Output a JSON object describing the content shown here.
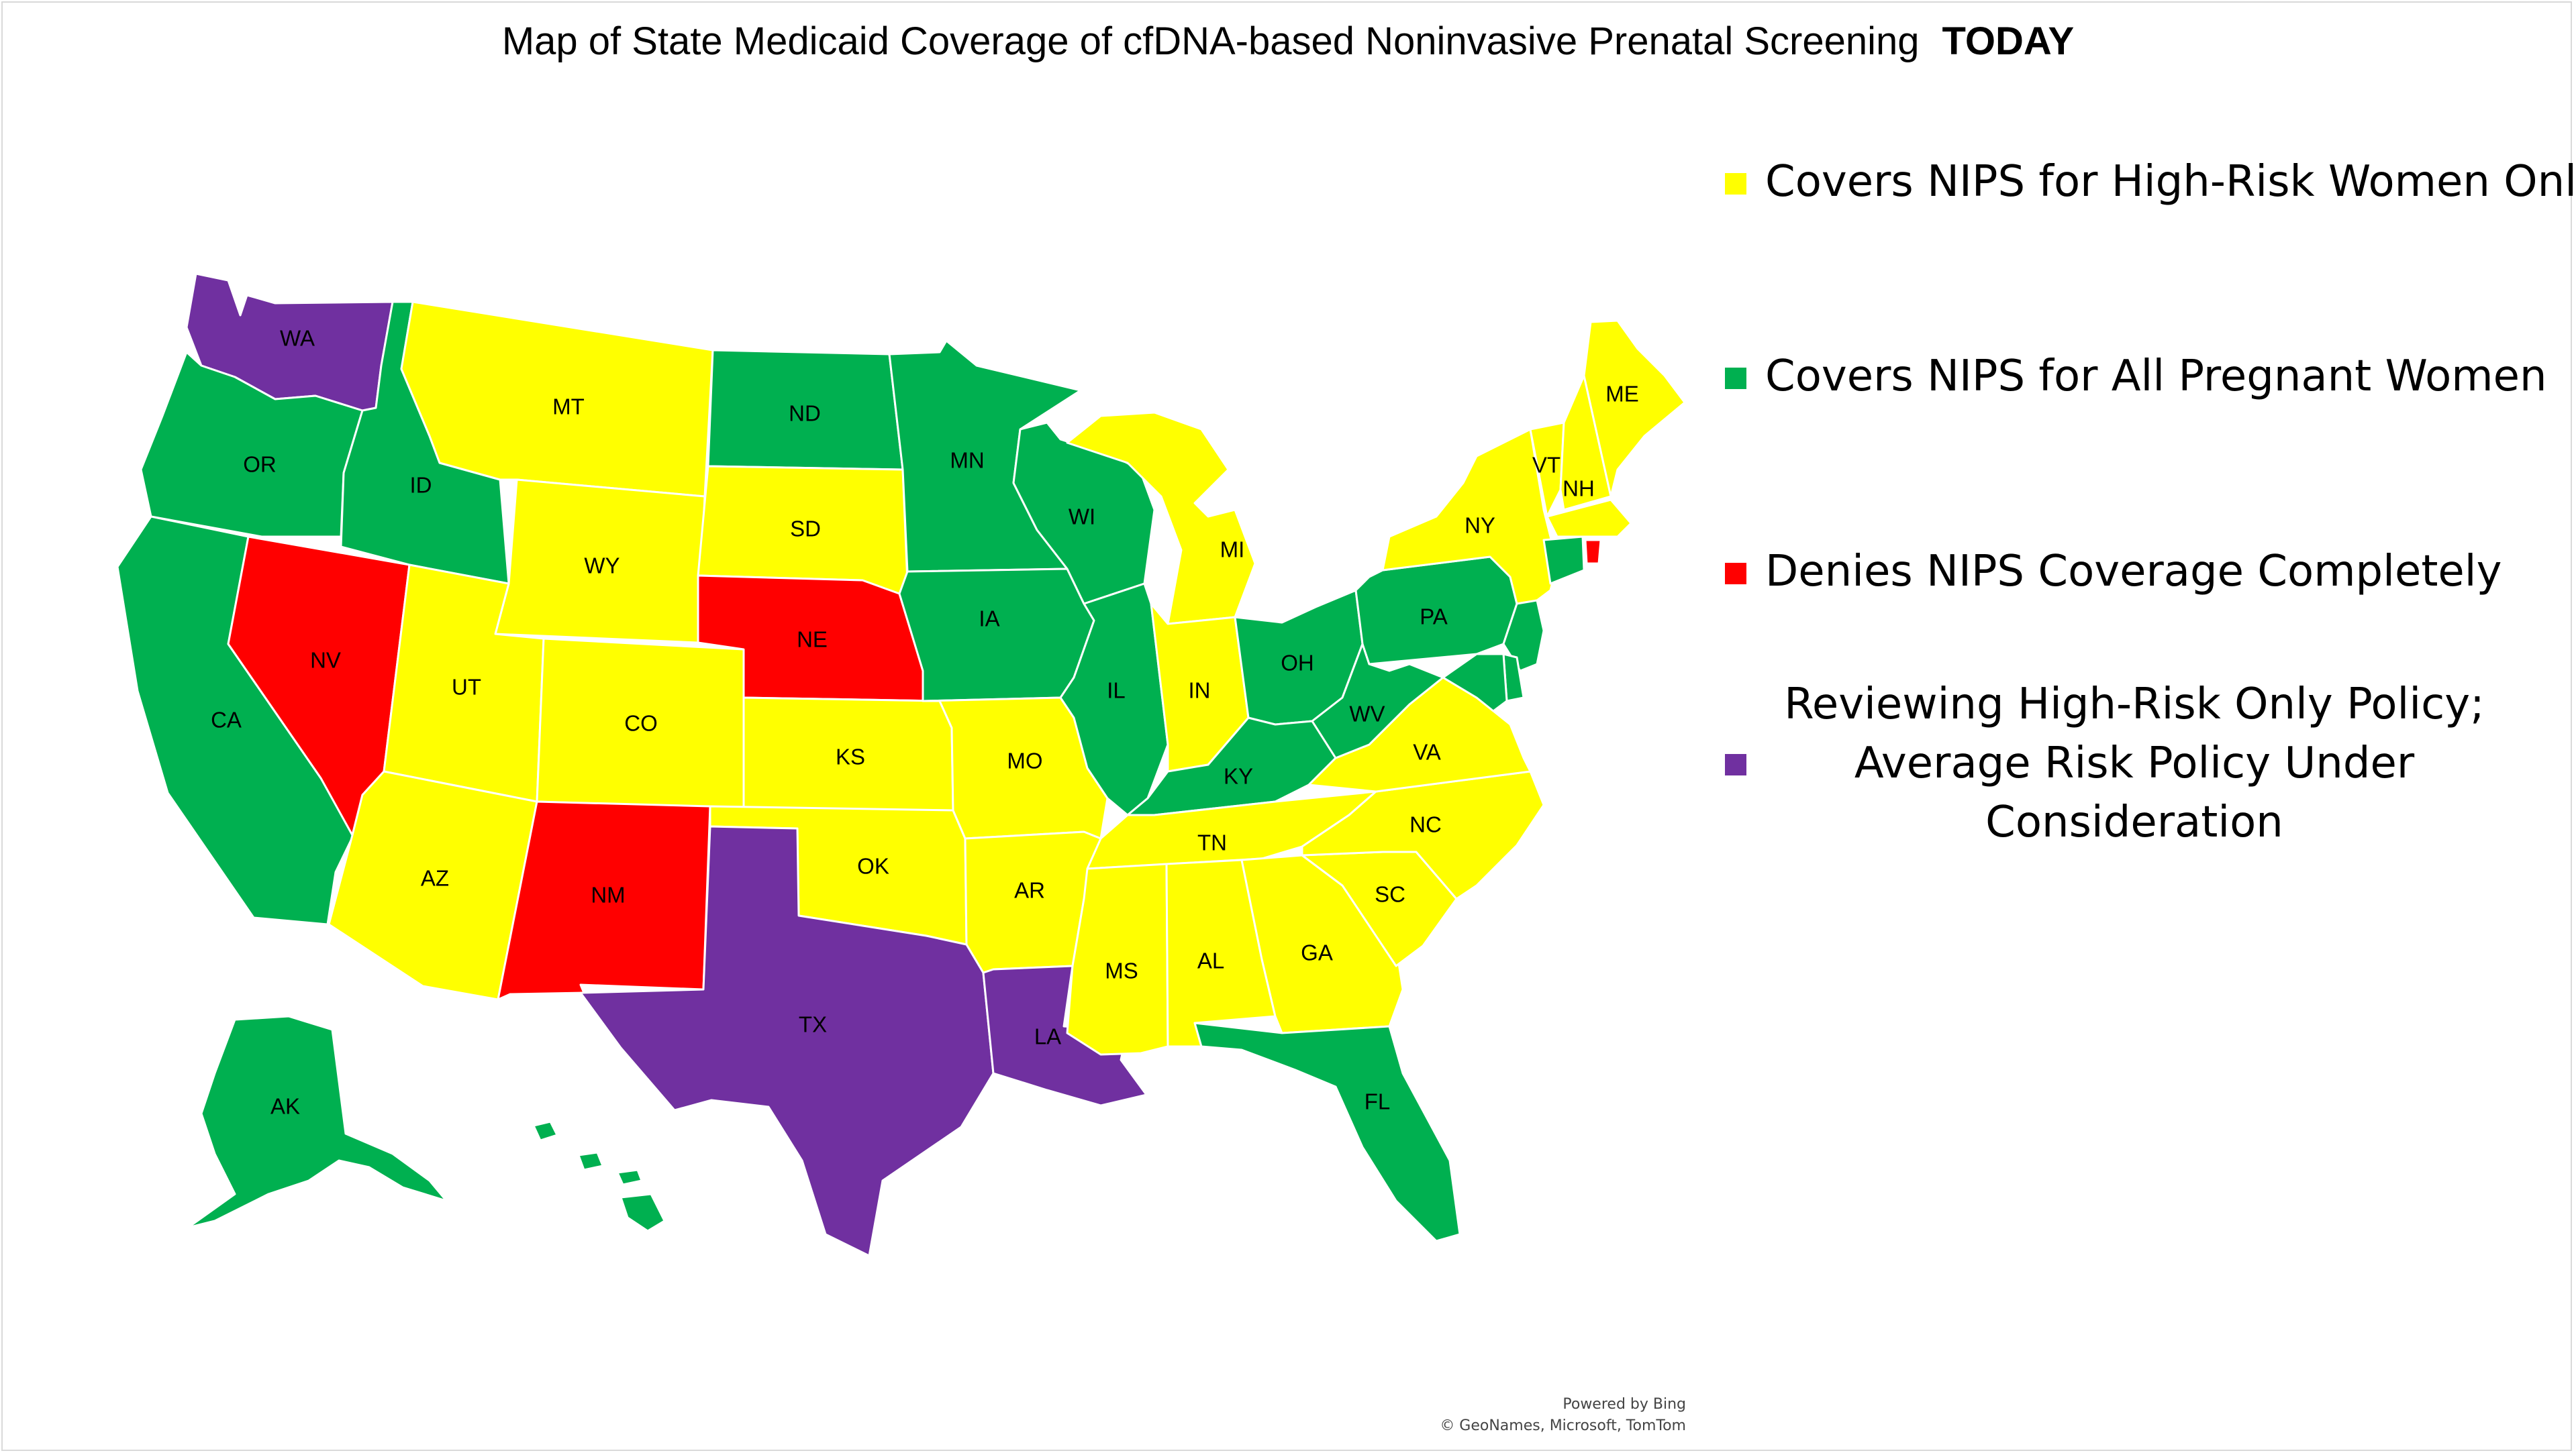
{
  "title": {
    "text": "Map of State Medicaid Coverage of cfDNA-based Noninvasive Prenatal Screening",
    "emphasis": "TODAY"
  },
  "colors": {
    "high_risk_only": "#ffff00",
    "all_pregnant": "#00b050",
    "denies": "#ff0000",
    "reviewing": "#7030a0"
  },
  "legend": [
    {
      "key": "high_risk_only",
      "label": "Covers NIPS for High-Risk Women Only"
    },
    {
      "key": "all_pregnant",
      "label": "Covers NIPS for All Pregnant Women"
    },
    {
      "key": "denies",
      "label": "Denies NIPS Coverage Completely"
    },
    {
      "key": "reviewing",
      "lines": [
        "Reviewing High-Risk Only Policy;",
        "Average Risk Policy Under",
        "Consideration"
      ]
    }
  ],
  "states": {
    "WA": "reviewing",
    "OR": "all_pregnant",
    "CA": "all_pregnant",
    "ID": "all_pregnant",
    "NV": "denies",
    "MT": "high_risk_only",
    "WY": "high_risk_only",
    "UT": "high_risk_only",
    "AZ": "high_risk_only",
    "CO": "high_risk_only",
    "NM": "denies",
    "ND": "all_pregnant",
    "SD": "high_risk_only",
    "NE": "denies",
    "KS": "high_risk_only",
    "OK": "high_risk_only",
    "TX": "reviewing",
    "MN": "all_pregnant",
    "IA": "all_pregnant",
    "MO": "high_risk_only",
    "AR": "high_risk_only",
    "LA": "reviewing",
    "WI": "all_pregnant",
    "IL": "all_pregnant",
    "MI": "high_risk_only",
    "IN": "high_risk_only",
    "OH": "all_pregnant",
    "KY": "all_pregnant",
    "TN": "high_risk_only",
    "MS": "high_risk_only",
    "AL": "high_risk_only",
    "GA": "high_risk_only",
    "FL": "all_pregnant",
    "SC": "high_risk_only",
    "NC": "high_risk_only",
    "VA": "high_risk_only",
    "WV": "all_pregnant",
    "PA": "all_pregnant",
    "NY": "high_risk_only",
    "VT": "high_risk_only",
    "NH": "high_risk_only",
    "ME": "high_risk_only",
    "MA": "high_risk_only",
    "CT": "all_pregnant",
    "RI": "denies",
    "NJ": "all_pregnant",
    "DE": "all_pregnant",
    "MD": "all_pregnant",
    "AK": "all_pregnant",
    "HI": "all_pregnant"
  },
  "state_labels": [
    "WA",
    "OR",
    "CA",
    "ID",
    "NV",
    "MT",
    "WY",
    "UT",
    "AZ",
    "CO",
    "NM",
    "ND",
    "SD",
    "NE",
    "KS",
    "OK",
    "TX",
    "MN",
    "IA",
    "MO",
    "AR",
    "LA",
    "WI",
    "IL",
    "MI",
    "IN",
    "OH",
    "KY",
    "TN",
    "MS",
    "AL",
    "GA",
    "FL",
    "SC",
    "NC",
    "VA",
    "WV",
    "PA",
    "NY",
    "VT",
    "NH",
    "ME",
    "AK"
  ],
  "attribution": {
    "line1": "Powered by Bing",
    "line2": "© GeoNames, Microsoft, TomTom"
  }
}
